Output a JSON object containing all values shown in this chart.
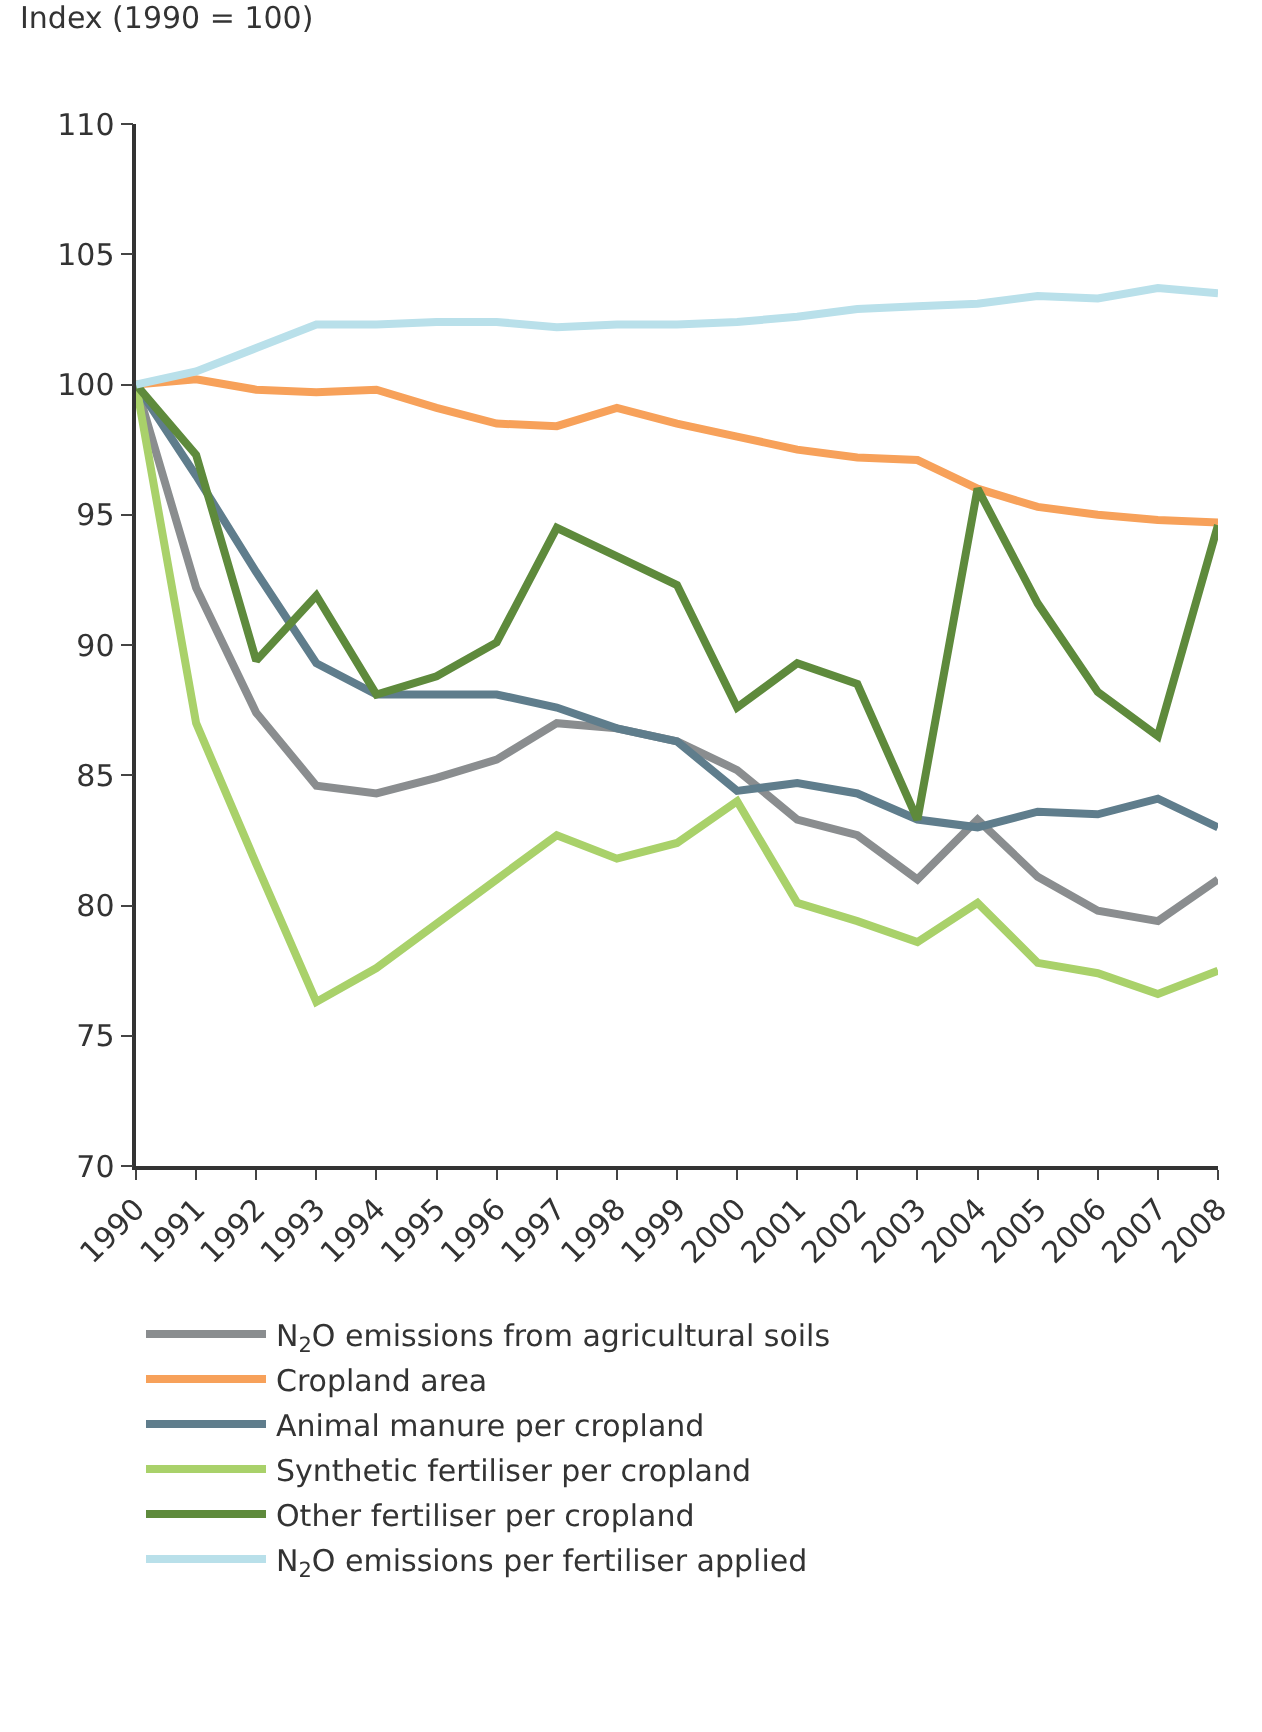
{
  "chart_data": {
    "type": "line",
    "ylabel": "Index (1990 = 100)",
    "categories": [
      "1990",
      "1991",
      "1992",
      "1993",
      "1994",
      "1995",
      "1996",
      "1997",
      "1998",
      "1999",
      "2000",
      "2001",
      "2002",
      "2003",
      "2004",
      "2005",
      "2006",
      "2007",
      "2008"
    ],
    "ylim": [
      70,
      110
    ],
    "yticks": [
      70,
      75,
      80,
      85,
      90,
      95,
      100,
      105,
      110
    ],
    "legend": "bottom",
    "marker": "none",
    "line_style": "solid",
    "series": [
      {
        "name": "N$_{2}$O emissions from agricultural soils",
        "color": "#8a8d8f",
        "values": [
          100,
          92.2,
          87.4,
          84.6,
          84.3,
          84.9,
          85.6,
          87.0,
          86.8,
          86.3,
          85.2,
          83.3,
          82.7,
          81.0,
          83.3,
          81.1,
          79.8,
          79.4,
          81.0
        ]
      },
      {
        "name": "Cropland area",
        "color": "#f7a15a",
        "values": [
          100,
          100.2,
          99.8,
          99.7,
          99.8,
          99.1,
          98.5,
          98.4,
          99.1,
          98.5,
          98.0,
          97.5,
          97.2,
          97.1,
          96.0,
          95.3,
          95.0,
          94.8,
          94.7
        ]
      },
      {
        "name": "Animal manure per cropland",
        "color": "#5f7d8c",
        "values": [
          100,
          96.5,
          92.8,
          89.3,
          88.1,
          88.1,
          88.1,
          87.6,
          86.8,
          86.3,
          84.4,
          84.7,
          84.3,
          83.3,
          83.0,
          83.6,
          83.5,
          84.1,
          83.0
        ]
      },
      {
        "name": "Synthetic fertiliser per cropland",
        "color": "#a9d16a",
        "values": [
          100,
          87.0,
          81.6,
          76.3,
          77.6,
          79.3,
          81.0,
          82.7,
          81.8,
          82.4,
          84.0,
          80.1,
          79.4,
          78.6,
          80.1,
          77.8,
          77.4,
          76.6,
          77.5
        ]
      },
      {
        "name": "Other fertiliser per cropland",
        "color": "#5e8a3c",
        "values": [
          100,
          97.3,
          89.4,
          91.9,
          88.1,
          88.8,
          90.1,
          94.5,
          93.4,
          92.3,
          87.6,
          89.3,
          88.5,
          83.3,
          96.0,
          91.6,
          88.2,
          86.5,
          94.6
        ]
      },
      {
        "name": "N$_{2}$O emissions per fertiliser applied",
        "color": "#b9e0ea",
        "values": [
          100,
          100.5,
          101.4,
          102.3,
          102.3,
          102.4,
          102.4,
          102.2,
          102.3,
          102.3,
          102.4,
          102.6,
          102.9,
          103.0,
          103.1,
          103.4,
          103.3,
          103.7,
          103.5
        ]
      }
    ]
  }
}
